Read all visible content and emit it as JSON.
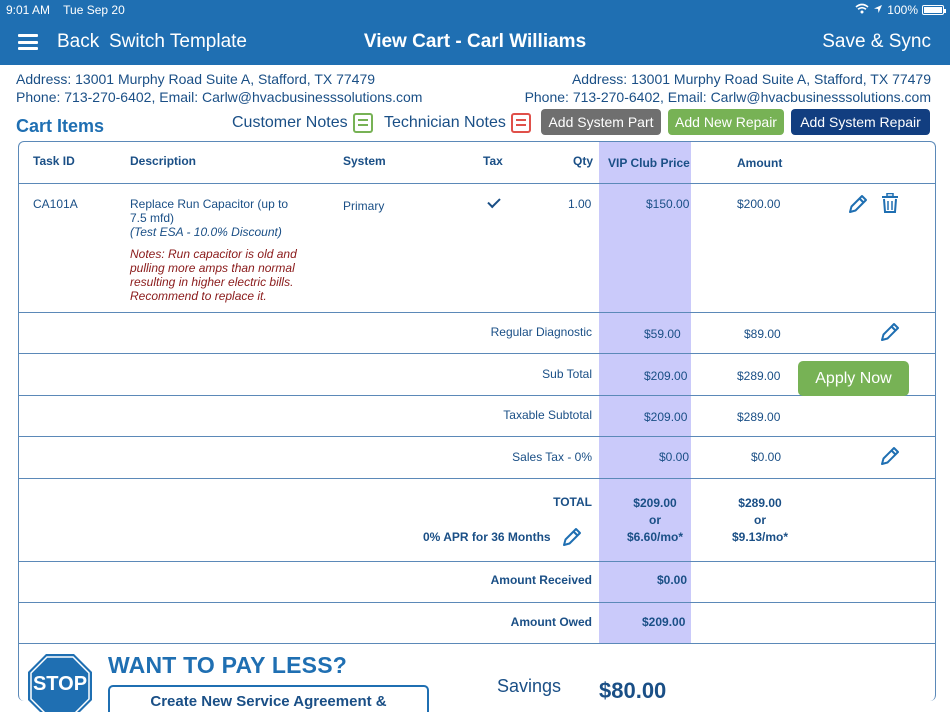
{
  "status": {
    "time": "9:01 AM",
    "date": "Tue Sep 20",
    "battery": "100%"
  },
  "nav": {
    "back": "Back",
    "switch_template": "Switch Template",
    "title": "View Cart - Carl Williams",
    "save_sync": "Save & Sync"
  },
  "address_left": {
    "address": "Address: 13001 Murphy Road Suite A, Stafford, TX 77479",
    "contact": "Phone: 713-270-6402, Email: Carlw@hvacbusinesssolutions.com"
  },
  "address_right": {
    "address": "Address: 13001 Murphy Road Suite A, Stafford, TX 77479",
    "contact": "Phone: 713-270-6402, Email: Carlw@hvacbusinesssolutions.com"
  },
  "cart": {
    "title": "Cart Items",
    "customer_notes": "Customer Notes",
    "technician_notes": "Technician Notes",
    "add_system_part": "Add System Part",
    "add_new_repair": "Add New Repair",
    "add_system_repair": "Add System Repair"
  },
  "columns": {
    "task_id": "Task ID",
    "description": "Description",
    "system": "System",
    "tax": "Tax",
    "qty": "Qty",
    "vip_price": "VIP Club Price",
    "amount": "Amount"
  },
  "item": {
    "task_id": "CA101A",
    "desc_line1": "Replace Run Capacitor (up to",
    "desc_line2": "7.5 mfd)",
    "discount": "(Test ESA - 10.0% Discount)",
    "notes": [
      "Notes: Run capacitor is old and",
      "pulling more amps than normal",
      "resulting in higher electric bills.",
      "Recommend to replace it."
    ],
    "system": "Primary",
    "qty": "1.00",
    "vip_price": "$150.00",
    "amount": "$200.00"
  },
  "summary": {
    "diagnostic": {
      "label": "Regular Diagnostic",
      "vip": "$59.00",
      "amount": "$89.00"
    },
    "subtotal": {
      "label": "Sub Total",
      "vip": "$209.00",
      "amount": "$289.00"
    },
    "taxable": {
      "label": "Taxable Subtotal",
      "vip": "$209.00",
      "amount": "$289.00"
    },
    "sales_tax": {
      "label": "Sales Tax - 0%",
      "vip": "$0.00",
      "amount": "$0.00"
    },
    "total": {
      "label": "TOTAL",
      "apr": "0% APR for 36 Months",
      "vip": "$209.00",
      "or": "or",
      "vip_monthly": "$6.60/mo*",
      "amount": "$289.00",
      "amount_monthly": "$9.13/mo*",
      "apply_now": "Apply Now"
    },
    "received": {
      "label": "Amount Received",
      "vip": "$0.00"
    },
    "owed": {
      "label": "Amount Owed",
      "vip": "$209.00"
    }
  },
  "footer": {
    "stop": "STOP",
    "want": "WANT TO PAY LESS?",
    "create_button": "Create New Service Agreement & Recalculate",
    "savings_label": "Savings",
    "savings_value": "$80.00"
  },
  "colors": {
    "header_bg": "#1f6fb2",
    "vip_column": "#cacafa",
    "green_button": "#77b255",
    "gray_button": "#6f6f6f",
    "dark_button": "#123e80"
  }
}
